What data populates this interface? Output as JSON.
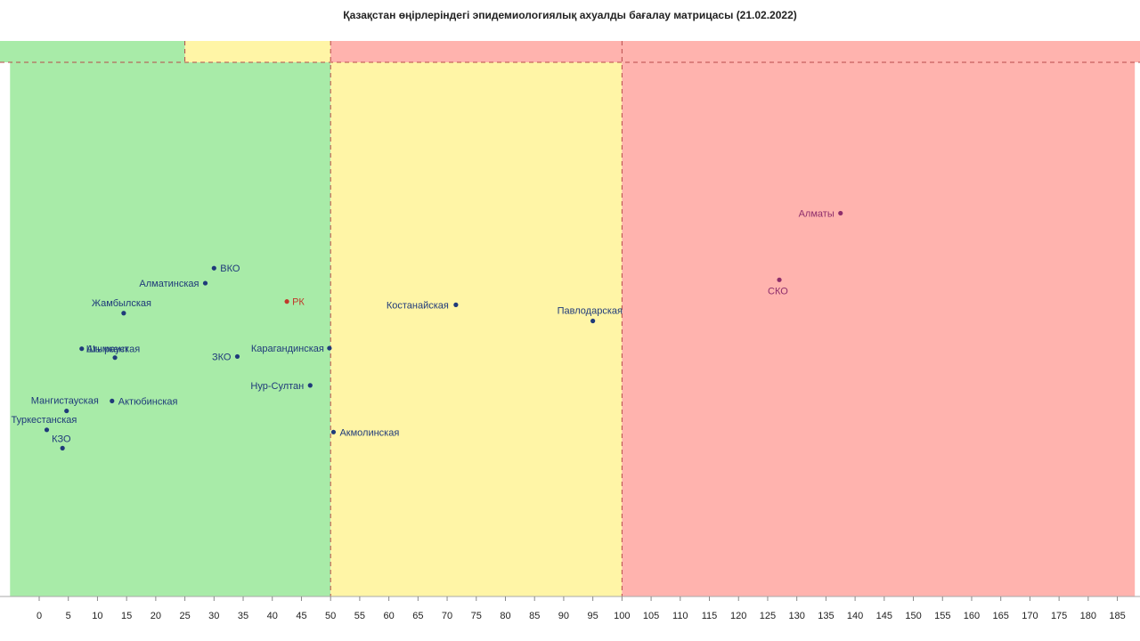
{
  "chart_data": {
    "type": "scatter",
    "title": "Қазақстан өңірлеріндегі эпидемиологиялық ахуалды бағалау матрицасы  (21.02.2022)",
    "xlabel": "",
    "ylabel": "",
    "xlim": [
      -5,
      188
    ],
    "x_ticks": [
      0,
      5,
      10,
      15,
      20,
      25,
      30,
      35,
      40,
      45,
      50,
      55,
      60,
      65,
      70,
      75,
      80,
      85,
      90,
      95,
      100,
      105,
      110,
      115,
      120,
      125,
      130,
      135,
      140,
      145,
      150,
      155,
      160,
      165,
      170,
      175,
      180,
      185
    ],
    "thresholds": [
      50,
      100
    ],
    "top_band_threshold": 25,
    "zones": [
      {
        "from": -5,
        "to": 50,
        "color": "#a8eba8"
      },
      {
        "from": 50,
        "to": 100,
        "color": "#fff5a6"
      },
      {
        "from": 100,
        "to": 188,
        "color": "#ffb3ae"
      }
    ],
    "threshold_line_color": "#b84a4a",
    "grid": false,
    "points": [
      {
        "name": "ВКО",
        "x": 30,
        "y": 0.591,
        "color": "#1f3a7a"
      },
      {
        "name": "Алматинская",
        "x": 28.5,
        "y": 0.564,
        "color": "#1f3a7a"
      },
      {
        "name": "Жамбылская",
        "x": 14.5,
        "y": 0.51,
        "color": "#1f3a7a"
      },
      {
        "name": "РК",
        "x": 42.5,
        "y": 0.531,
        "color": "#c0392b"
      },
      {
        "name": "Шымкент",
        "x": 7.3,
        "y": 0.446,
        "color": "#1f3a7a"
      },
      {
        "name": "Атырауская",
        "x": 13,
        "y": 0.43,
        "color": "#1f3a7a"
      },
      {
        "name": "ЗКО",
        "x": 34,
        "y": 0.432,
        "color": "#1f3a7a"
      },
      {
        "name": "Карагандинская",
        "x": 49.8,
        "y": 0.447,
        "color": "#1f3a7a"
      },
      {
        "name": "Нур-Султан",
        "x": 46.5,
        "y": 0.38,
        "color": "#1f3a7a"
      },
      {
        "name": "Мангистауская",
        "x": 4.7,
        "y": 0.334,
        "color": "#1f3a7a"
      },
      {
        "name": "Актюбинская",
        "x": 12.5,
        "y": 0.352,
        "color": "#1f3a7a"
      },
      {
        "name": "Туркестанская",
        "x": 1.3,
        "y": 0.3,
        "color": "#1f3a7a"
      },
      {
        "name": "КЗО",
        "x": 4,
        "y": 0.267,
        "color": "#1f3a7a"
      },
      {
        "name": "Акмолинская",
        "x": 50.5,
        "y": 0.296,
        "color": "#1f3a7a"
      },
      {
        "name": "Костанайская",
        "x": 71.5,
        "y": 0.525,
        "color": "#1f3a7a"
      },
      {
        "name": "Павлодарская",
        "x": 95,
        "y": 0.496,
        "color": "#1f3a7a"
      },
      {
        "name": "Алматы",
        "x": 137.5,
        "y": 0.69,
        "color": "#8e2e6b"
      },
      {
        "name": "СКО",
        "x": 127,
        "y": 0.57,
        "color": "#8e2e6b"
      }
    ]
  }
}
